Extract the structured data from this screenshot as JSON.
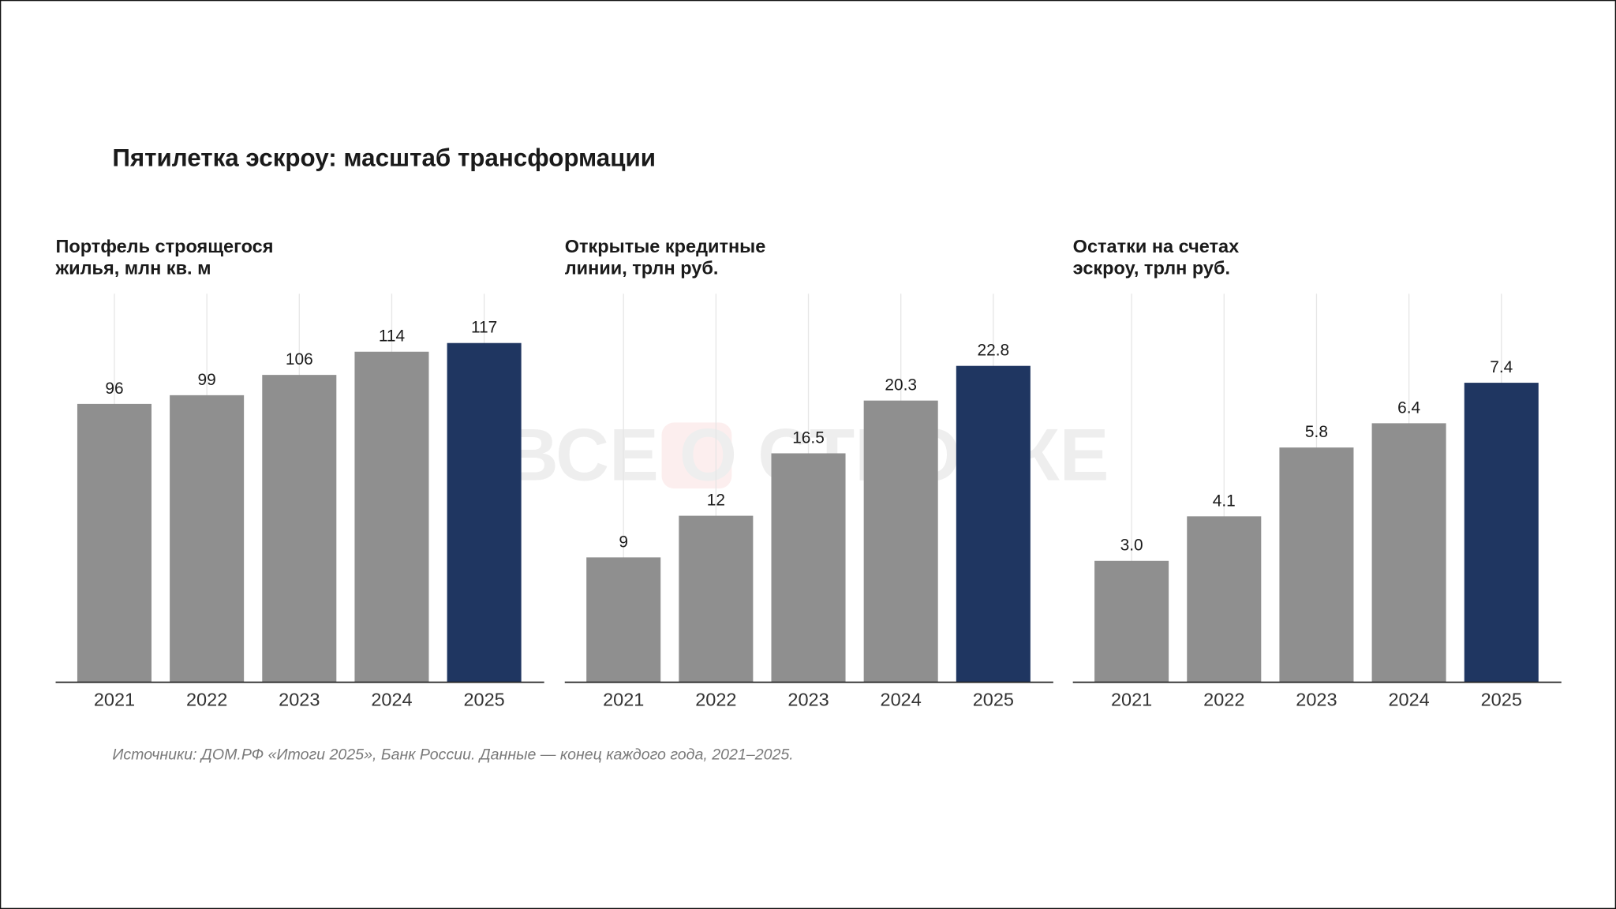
{
  "title": "Пятилетка эскроу: масштаб трансформации",
  "watermark": "ВСЕ О СТРОЙКЕ",
  "chart_data": [
    {
      "type": "bar",
      "title": [
        "Портфель строящегося",
        "жилья, млн кв. м"
      ],
      "categories": [
        "2021",
        "2022",
        "2023",
        "2024",
        "2025"
      ],
      "values": [
        96,
        99,
        106,
        114,
        117
      ],
      "colors": [
        "#8f8f8f",
        "#8f8f8f",
        "#8f8f8f",
        "#8f8f8f",
        "#1f3661"
      ],
      "ylim": [
        0,
        134
      ],
      "grid": true
    },
    {
      "type": "bar",
      "title": [
        "Открытые кредитные",
        "линии, трлн руб."
      ],
      "categories": [
        "2021",
        "2022",
        "2023",
        "2024",
        "2025"
      ],
      "values": [
        9,
        12,
        16.5,
        20.3,
        22.8
      ],
      "colors": [
        "#8f8f8f",
        "#8f8f8f",
        "#8f8f8f",
        "#8f8f8f",
        "#1f3661"
      ],
      "ylim": [
        0,
        28
      ],
      "grid": true
    },
    {
      "type": "bar",
      "title": [
        "Остатки на счетах",
        "эскроу, трлн руб."
      ],
      "categories": [
        "2021",
        "2022",
        "2023",
        "2024",
        "2025"
      ],
      "values": [
        3.0,
        4.1,
        5.8,
        6.4,
        7.4
      ],
      "value_labels": [
        "3.0",
        "4.1",
        "5.8",
        "6.4",
        "7.4"
      ],
      "colors": [
        "#8f8f8f",
        "#8f8f8f",
        "#8f8f8f",
        "#8f8f8f",
        "#1f3661"
      ],
      "ylim": [
        0,
        9.6
      ],
      "grid": true
    }
  ],
  "source": "Источники: ДОМ.РФ «Итоги 2025», Банк России. Данные — конец каждого года, 2021–2025."
}
